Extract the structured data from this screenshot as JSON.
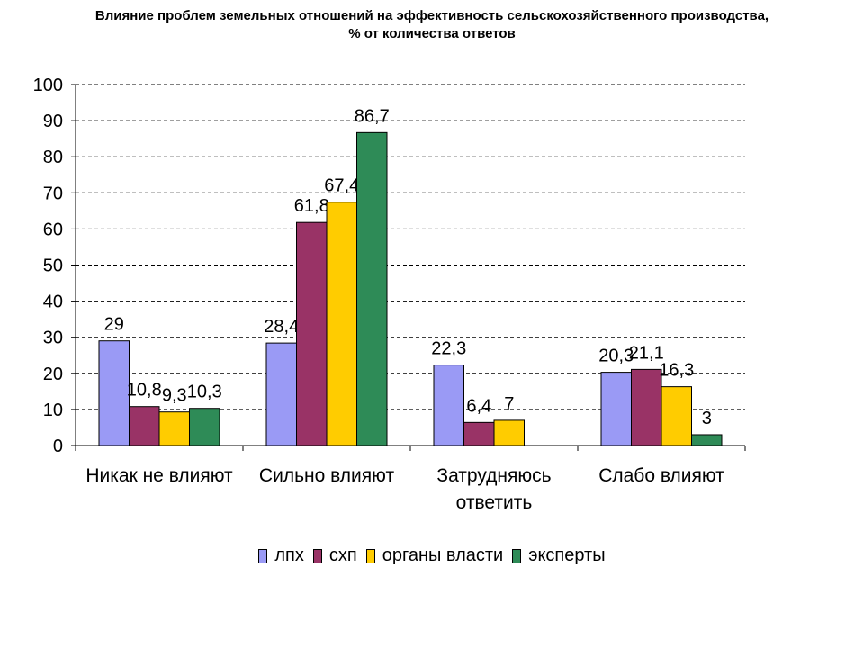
{
  "chart_data": {
    "type": "bar",
    "title_line1": "Влияние  проблем земельных отношений на эффективность сельскохозяйственного производства,",
    "title_line2": "% от количества ответов",
    "categories": [
      "Никак не влияют",
      "Сильно влияют",
      "Затрудняюсь ответить",
      "Слабо влияют"
    ],
    "category_lines": [
      [
        "Никак не влияют"
      ],
      [
        "Сильно влияют"
      ],
      [
        "Затрудняюсь",
        "ответить"
      ],
      [
        "Слабо влияют"
      ]
    ],
    "series": [
      {
        "name": "лпх",
        "color": "#9a9af5",
        "values": [
          29,
          28.4,
          22.3,
          20.3
        ],
        "labels": [
          "29",
          "28,4",
          "22,3",
          "20,3"
        ]
      },
      {
        "name": "схп",
        "color": "#993366",
        "values": [
          10.8,
          61.8,
          6.4,
          21.1
        ],
        "labels": [
          "10,8",
          "61,8",
          "6,4",
          "21,1"
        ]
      },
      {
        "name": "органы власти",
        "color": "#ffcc00",
        "values": [
          9.3,
          67.4,
          7,
          16.3
        ],
        "labels": [
          "9,3",
          "67,4",
          "7",
          "16,3"
        ]
      },
      {
        "name": "эксперты",
        "color": "#2e8b57",
        "values": [
          10.3,
          86.7,
          null,
          3
        ],
        "labels": [
          "10,3",
          "86,7",
          "",
          "3"
        ]
      }
    ],
    "ylim": [
      0,
      100
    ],
    "yticks": [
      0,
      10,
      20,
      30,
      40,
      50,
      60,
      70,
      80,
      90,
      100
    ],
    "grid": true,
    "legend_position": "bottom"
  }
}
